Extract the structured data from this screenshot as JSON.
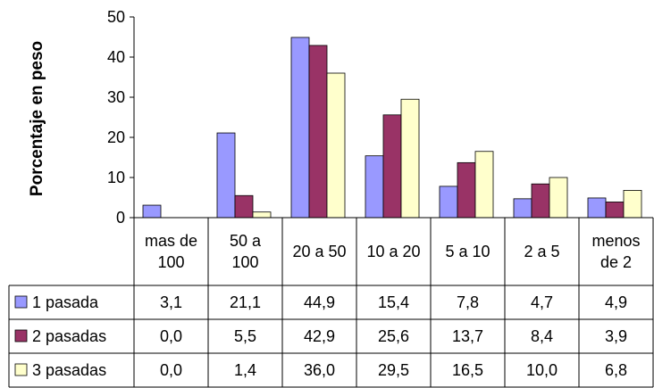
{
  "chart_data": {
    "type": "bar",
    "ylabel": "Porcentaje en peso",
    "ylim": [
      0,
      50
    ],
    "yticks": [
      "0",
      "10",
      "20",
      "30",
      "40",
      "50"
    ],
    "categories": [
      [
        "mas de",
        "100"
      ],
      [
        "50 a",
        "100"
      ],
      [
        "20 a 50"
      ],
      [
        "10 a 20"
      ],
      [
        "5 a 10"
      ],
      [
        "2 a 5"
      ],
      [
        "menos",
        "de 2"
      ]
    ],
    "series": [
      {
        "name": "1 pasada",
        "color": "#9999ff",
        "values": [
          3.1,
          21.1,
          44.9,
          15.4,
          7.8,
          4.7,
          4.9
        ],
        "labels": [
          "3,1",
          "21,1",
          "44,9",
          "15,4",
          "7,8",
          "4,7",
          "4,9"
        ]
      },
      {
        "name": "2 pasadas",
        "color": "#993366",
        "values": [
          0.0,
          5.5,
          42.9,
          25.6,
          13.7,
          8.4,
          3.9
        ],
        "labels": [
          "0,0",
          "5,5",
          "42,9",
          "25,6",
          "13,7",
          "8,4",
          "3,9"
        ]
      },
      {
        "name": "3 pasadas",
        "color": "#ffffcc",
        "values": [
          0.0,
          1.4,
          36.0,
          29.5,
          16.5,
          10.0,
          6.8
        ],
        "labels": [
          "0,0",
          "1,4",
          "36,0",
          "29,5",
          "16,5",
          "10,0",
          "6,8"
        ]
      }
    ],
    "grid": false,
    "legend": "data-table"
  }
}
